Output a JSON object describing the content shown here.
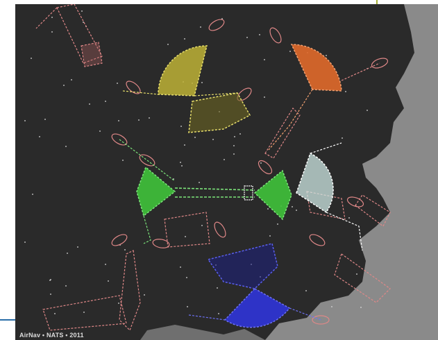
{
  "map": {
    "caption": "AirNav • NATS • 2011",
    "colors": {
      "background": "#2a2a2a",
      "land": "#1e1e1e",
      "sea": "#8a8a8a",
      "yellow_sector": "#bdb136",
      "orange_sector": "#e0692a",
      "green_sector": "#3fc23a",
      "white_sector": "#cfe8e4",
      "blue_sector": "#2f34d8",
      "holding_pattern": "#e08888",
      "route_dots": "#dddddd"
    },
    "regions": [
      {
        "name": "yellow-sector",
        "color": "yellow_sector"
      },
      {
        "name": "orange-sector",
        "color": "orange_sector"
      },
      {
        "name": "green-sector",
        "color": "green_sector"
      },
      {
        "name": "white-sector",
        "color": "white_sector"
      },
      {
        "name": "blue-sector",
        "color": "blue_sector"
      }
    ]
  }
}
